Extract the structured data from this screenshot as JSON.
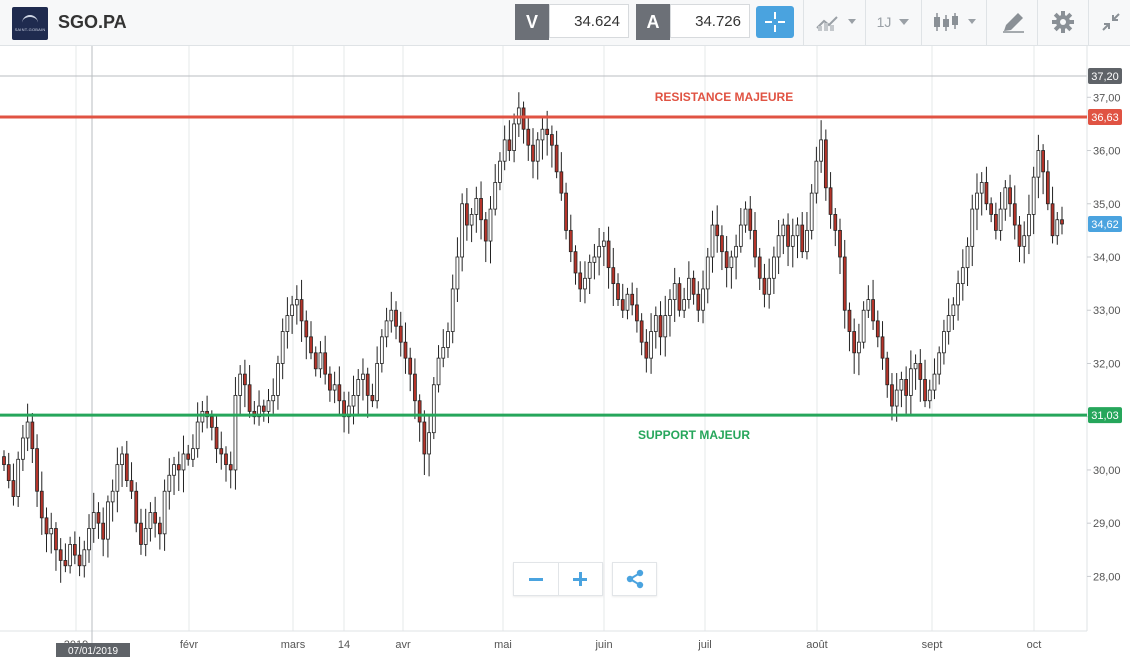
{
  "toolbar": {
    "symbol": "SGO.PA",
    "sell_label": "V",
    "sell_price": "34.624",
    "buy_label": "A",
    "buy_price": "34.726",
    "period_label": "1J",
    "accent_color": "#4aa3df"
  },
  "chart_data": {
    "type": "candlestick",
    "ylim": [
      27.2,
      37.4
    ],
    "yticks": [
      28.0,
      29.0,
      30.0,
      31.0,
      32.0,
      33.0,
      34.0,
      35.0,
      36.0,
      37.0
    ],
    "ytick_labels": [
      "28,00",
      "29,00",
      "30,00",
      "31,00",
      "32,00",
      "33,00",
      "34,00",
      "35,00",
      "36,00",
      "37,00"
    ],
    "xtick_labels": [
      "2019",
      "févr",
      "mars",
      "14",
      "avr",
      "mai",
      "juin",
      "juil",
      "août",
      "sept",
      "oct"
    ],
    "crosshair_date": "07/01/2019",
    "crosshair_price": "37,20",
    "last_price_label": "34,62",
    "last_price_color": "#4aa3df",
    "resistance": {
      "value": 36.63,
      "label": "36,63",
      "text": "RESISTANCE MAJEURE",
      "color": "#e05343"
    },
    "support": {
      "value": 31.03,
      "label": "31,03",
      "text": "SUPPORT MAJEUR",
      "color": "#26a65b"
    },
    "up_color": "#ffffff",
    "down_color": "#b5342a",
    "closes": [
      30.1,
      29.8,
      29.5,
      30.2,
      30.6,
      30.9,
      30.4,
      29.6,
      29.1,
      28.8,
      28.9,
      28.5,
      28.3,
      28.2,
      28.6,
      28.4,
      28.2,
      28.5,
      28.9,
      29.2,
      29.0,
      28.7,
      29.4,
      29.6,
      30.1,
      30.3,
      29.8,
      29.6,
      29.0,
      28.6,
      28.9,
      29.2,
      29.0,
      28.8,
      29.6,
      29.9,
      30.1,
      30.0,
      30.3,
      30.2,
      30.4,
      30.9,
      31.1,
      31.0,
      30.8,
      30.4,
      30.3,
      30.1,
      30.0,
      31.4,
      31.8,
      31.6,
      31.1,
      31.0,
      31.2,
      31.1,
      31.3,
      31.4,
      32.0,
      32.6,
      32.9,
      33.1,
      33.2,
      32.8,
      32.5,
      32.2,
      31.9,
      32.2,
      31.8,
      31.5,
      31.6,
      31.3,
      31.0,
      31.2,
      31.4,
      31.7,
      31.8,
      31.4,
      31.3,
      32.0,
      32.5,
      32.8,
      33.0,
      32.7,
      32.4,
      32.1,
      31.8,
      31.3,
      30.9,
      30.3,
      30.7,
      31.6,
      32.1,
      32.3,
      32.6,
      33.4,
      34.0,
      35.0,
      34.6,
      34.8,
      35.1,
      34.7,
      34.3,
      34.9,
      35.4,
      35.8,
      36.2,
      36.0,
      36.5,
      36.8,
      36.4,
      36.1,
      35.8,
      36.2,
      36.4,
      36.3,
      36.1,
      35.6,
      35.2,
      34.5,
      34.1,
      33.7,
      33.4,
      33.6,
      33.9,
      34.0,
      34.2,
      34.3,
      33.8,
      33.5,
      33.2,
      33.0,
      33.3,
      33.1,
      32.8,
      32.4,
      32.1,
      32.6,
      32.9,
      32.5,
      32.9,
      33.2,
      33.5,
      33.0,
      33.2,
      33.6,
      33.3,
      33.0,
      33.4,
      34.0,
      34.6,
      34.4,
      34.1,
      33.8,
      34.0,
      34.2,
      34.6,
      34.9,
      34.5,
      34.0,
      33.6,
      33.3,
      33.6,
      34.0,
      34.4,
      34.6,
      34.2,
      34.4,
      34.6,
      34.1,
      34.5,
      35.2,
      35.8,
      36.2,
      35.3,
      34.8,
      34.5,
      34.0,
      33.0,
      32.6,
      32.2,
      32.4,
      33.0,
      33.2,
      32.8,
      32.5,
      32.1,
      31.6,
      31.2,
      31.5,
      31.7,
      31.4,
      31.9,
      32.0,
      31.7,
      31.3,
      31.5,
      31.8,
      32.2,
      32.6,
      32.9,
      33.1,
      33.5,
      33.8,
      34.2,
      34.9,
      35.2,
      35.4,
      35.0,
      34.8,
      34.5,
      34.9,
      35.3,
      35.0,
      34.6,
      34.2,
      34.4,
      34.8,
      35.5,
      36.0,
      35.6,
      35.0,
      34.4,
      34.7,
      34.62
    ]
  }
}
